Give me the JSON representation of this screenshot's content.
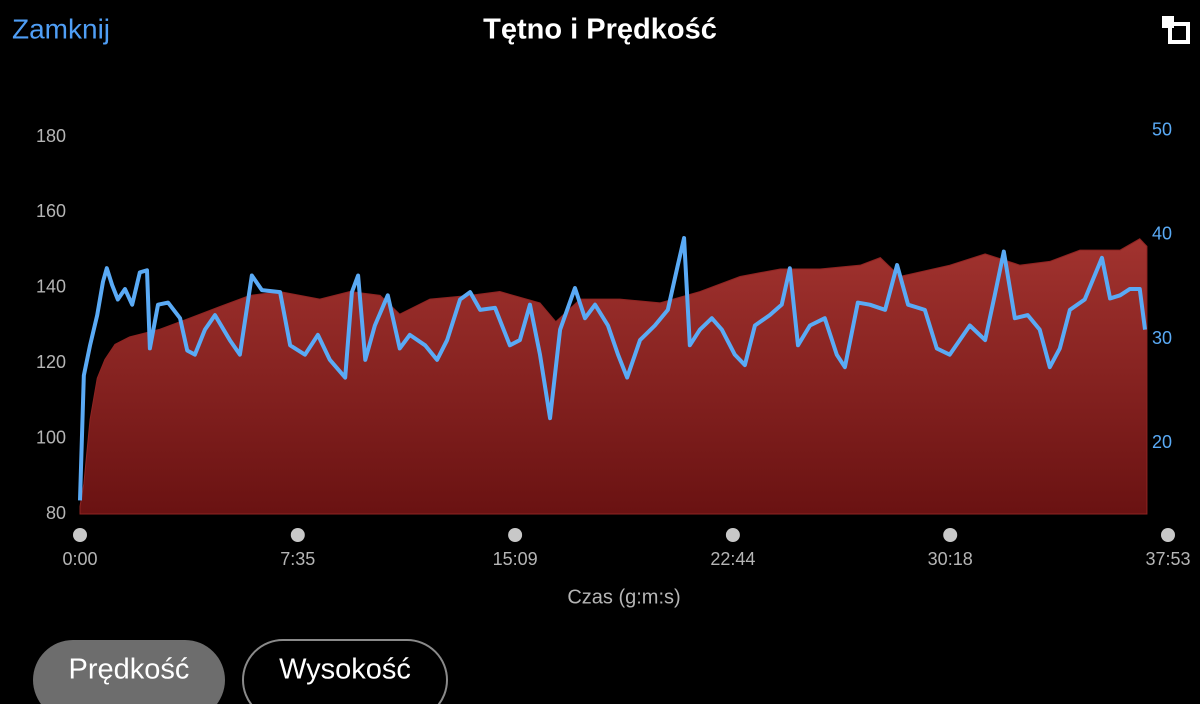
{
  "header": {
    "close": "Zamknij",
    "title": "Tętno i Prędkość"
  },
  "chart_data": {
    "type": "line",
    "xlabel": "Czas (g:m:s)",
    "xlim": [
      0,
      2273
    ],
    "xticks": [
      {
        "value": 0,
        "label": "0:00"
      },
      {
        "value": 455,
        "label": "7:35"
      },
      {
        "value": 909,
        "label": "15:09"
      },
      {
        "value": 1364,
        "label": "22:44"
      },
      {
        "value": 1818,
        "label": "30:18"
      },
      {
        "value": 2273,
        "label": "37:53"
      }
    ],
    "ylim": [
      80,
      180
    ],
    "yticks": [
      80,
      100,
      120,
      140,
      160,
      180
    ],
    "y2lim": [
      13.2,
      49.4
    ],
    "y2ticks": [
      20,
      30,
      40,
      50
    ],
    "series": [
      {
        "type": "area",
        "color": "#8e2422",
        "x": [
          0,
          8,
          21,
          36,
          52,
          73,
          104,
          167,
          230,
          292,
          355,
          418,
          501,
          564,
          627,
          668,
          731,
          815,
          877,
          961,
          994,
          1045,
          1128,
          1212,
          1295,
          1379,
          1463,
          1546,
          1630,
          1672,
          1713,
          1817,
          1891,
          1964,
          2026,
          2089,
          2173,
          2214,
          2229
        ],
        "values": [
          82,
          88,
          105,
          116,
          121,
          125,
          127,
          129,
          132,
          135,
          138,
          139,
          137,
          139,
          138,
          133,
          137,
          138,
          139,
          136,
          131,
          137,
          137,
          136,
          139,
          143,
          145,
          145,
          146,
          148,
          143,
          146,
          149,
          146,
          147,
          150,
          150,
          153,
          151
        ]
      },
      {
        "type": "line",
        "color": "#5aaaf5",
        "axis": "y2",
        "x": [
          0,
          8,
          21,
          36,
          48,
          56,
          67,
          79,
          94,
          109,
          125,
          140,
          146,
          163,
          184,
          209,
          224,
          240,
          261,
          282,
          313,
          334,
          359,
          380,
          418,
          439,
          470,
          497,
          522,
          554,
          568,
          581,
          596,
          616,
          643,
          668,
          689,
          721,
          746,
          767,
          794,
          815,
          836,
          867,
          898,
          919,
          940,
          961,
          982,
          1003,
          1034,
          1055,
          1076,
          1103,
          1124,
          1143,
          1170,
          1201,
          1228,
          1249,
          1262,
          1274,
          1295,
          1320,
          1341,
          1368,
          1389,
          1410,
          1441,
          1466,
          1483,
          1500,
          1525,
          1556,
          1581,
          1598,
          1625,
          1650,
          1682,
          1707,
          1730,
          1765,
          1790,
          1817,
          1838,
          1859,
          1891,
          1911,
          1930,
          1953,
          1980,
          2005,
          2026,
          2047,
          2068,
          2099,
          2135,
          2152,
          2173,
          2193,
          2214,
          2225
        ],
        "values": [
          14.5,
          26.5,
          29.4,
          32.3,
          35.5,
          36.8,
          35.2,
          33.8,
          34.8,
          33.3,
          36.4,
          36.6,
          29.1,
          33.3,
          33.5,
          32.0,
          28.9,
          28.5,
          30.9,
          32.3,
          29.9,
          28.5,
          36.1,
          34.7,
          34.5,
          29.4,
          28.5,
          30.4,
          28.0,
          26.3,
          34.5,
          36.1,
          28.0,
          31.3,
          34.2,
          29.1,
          30.4,
          29.4,
          28.0,
          29.9,
          33.8,
          34.5,
          32.8,
          33.0,
          29.4,
          29.9,
          33.3,
          28.5,
          22.4,
          30.9,
          34.9,
          32.0,
          33.3,
          31.3,
          28.5,
          26.3,
          29.9,
          31.3,
          32.8,
          37.1,
          39.7,
          29.4,
          30.9,
          32.0,
          30.9,
          28.5,
          27.5,
          31.3,
          32.3,
          33.3,
          36.8,
          29.4,
          31.3,
          32.0,
          28.5,
          27.3,
          33.5,
          33.3,
          32.8,
          37.1,
          33.3,
          32.8,
          29.1,
          28.5,
          29.9,
          31.3,
          29.9,
          34.2,
          38.4,
          32.0,
          32.3,
          30.9,
          27.3,
          29.1,
          32.8,
          33.8,
          37.8,
          33.9,
          34.2,
          34.8,
          34.8,
          30.9
        ]
      }
    ]
  },
  "buttons": [
    "Prędkość",
    "Wysokość"
  ]
}
